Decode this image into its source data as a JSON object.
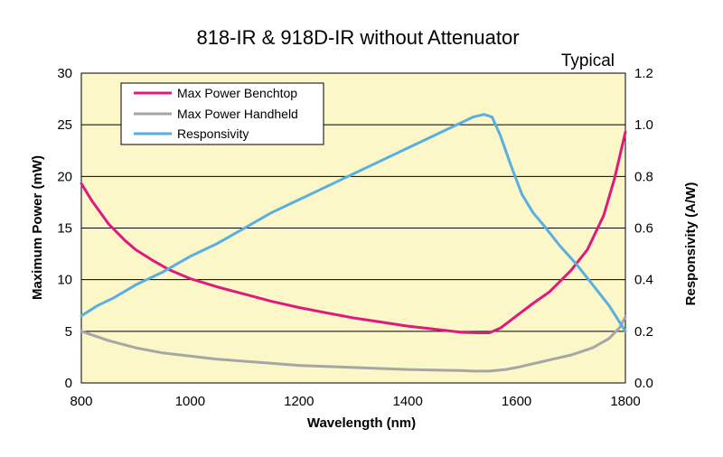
{
  "chart_data": {
    "type": "line",
    "title": "818-IR & 918D-IR without Attenuator",
    "subtitle": "Typical",
    "xlabel": "Wavelength (nm)",
    "ylabel_left": "Maximum Power (mW)",
    "ylabel_right": "Responsivity  (A/W)",
    "xlim": [
      800,
      1800
    ],
    "ylim_left": [
      0,
      30
    ],
    "ylim_right": [
      0.0,
      1.2
    ],
    "x_ticks": [
      "800",
      "1000",
      "1200",
      "1400",
      "1600",
      "1800"
    ],
    "y_left_ticks": [
      "0",
      "5",
      "10",
      "15",
      "20",
      "25",
      "30"
    ],
    "y_right_ticks": [
      "0.0",
      "0.2",
      "0.4",
      "0.6",
      "0.8",
      "1.0",
      "1.2"
    ],
    "grid": true,
    "legend_position": "top-left",
    "colors": {
      "plot_bg": "#fbf7c8",
      "grid": "#000000",
      "benchtop": "#e0197d",
      "handheld": "#a6a6a6",
      "responsivity": "#5aaee0"
    },
    "series": [
      {
        "name": "Max Power Benchtop",
        "axis": "left",
        "color": "#e0197d",
        "x": [
          800,
          820,
          850,
          880,
          900,
          930,
          960,
          1000,
          1050,
          1100,
          1150,
          1200,
          1250,
          1300,
          1350,
          1400,
          1450,
          1500,
          1530,
          1550,
          1570,
          1600,
          1630,
          1660,
          1700,
          1730,
          1760,
          1780,
          1800
        ],
        "values": [
          19.3,
          17.6,
          15.4,
          13.8,
          12.9,
          11.9,
          11.0,
          10.1,
          9.3,
          8.6,
          7.9,
          7.3,
          6.8,
          6.3,
          5.9,
          5.5,
          5.2,
          4.9,
          4.85,
          4.85,
          5.3,
          6.5,
          7.7,
          8.8,
          10.9,
          12.9,
          16.2,
          19.8,
          24.3
        ]
      },
      {
        "name": "Max Power Handheld",
        "axis": "left",
        "color": "#a6a6a6",
        "x": [
          800,
          850,
          900,
          950,
          1000,
          1050,
          1100,
          1150,
          1200,
          1250,
          1300,
          1350,
          1400,
          1450,
          1500,
          1520,
          1550,
          1580,
          1600,
          1650,
          1700,
          1740,
          1770,
          1790,
          1800
        ],
        "values": [
          5.0,
          4.1,
          3.4,
          2.9,
          2.6,
          2.3,
          2.1,
          1.9,
          1.7,
          1.6,
          1.5,
          1.4,
          1.3,
          1.25,
          1.2,
          1.15,
          1.15,
          1.3,
          1.5,
          2.1,
          2.7,
          3.4,
          4.3,
          5.4,
          6.4
        ]
      },
      {
        "name": "Responsivity",
        "axis": "right",
        "color": "#5aaee0",
        "x": [
          800,
          830,
          860,
          900,
          950,
          1000,
          1050,
          1100,
          1150,
          1200,
          1250,
          1300,
          1350,
          1400,
          1450,
          1500,
          1520,
          1540,
          1555,
          1570,
          1590,
          1610,
          1630,
          1650,
          1680,
          1710,
          1740,
          1770,
          1800
        ],
        "values": [
          0.26,
          0.3,
          0.33,
          0.38,
          0.43,
          0.49,
          0.54,
          0.6,
          0.66,
          0.71,
          0.76,
          0.81,
          0.86,
          0.91,
          0.96,
          1.01,
          1.03,
          1.04,
          1.03,
          0.96,
          0.84,
          0.73,
          0.66,
          0.61,
          0.53,
          0.46,
          0.38,
          0.3,
          0.2
        ]
      }
    ]
  }
}
